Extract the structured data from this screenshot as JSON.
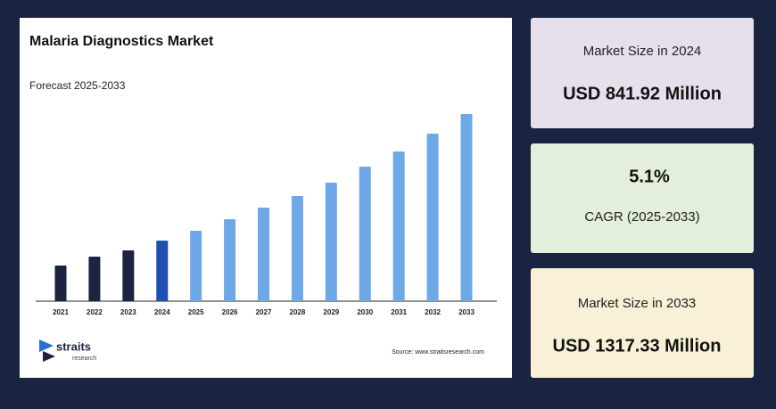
{
  "chart_data": {
    "type": "bar",
    "title": "Malaria Diagnostics Market",
    "subtitle": "Forecast 2025-2033",
    "categories": [
      "2021",
      "2022",
      "2023",
      "2024",
      "2025",
      "2026",
      "2027",
      "2028",
      "2029",
      "2030",
      "2031",
      "2032",
      "2033"
    ],
    "values": [
      40,
      50,
      57,
      68,
      79,
      92,
      105,
      118,
      133,
      151,
      168,
      188,
      210
    ],
    "colors": [
      "#1b2440",
      "#1b2440",
      "#1b2440",
      "#1f4fb0",
      "#6fa8e6",
      "#6fa8e6",
      "#6fa8e6",
      "#6fa8e6",
      "#6fa8e6",
      "#6fa8e6",
      "#6fa8e6",
      "#6fa8e6",
      "#6fa8e6"
    ],
    "source": "Source: www.straitsresearch.com"
  },
  "logo": {
    "name": "straits",
    "tagline": "research"
  },
  "cards": [
    {
      "label": "Market Size in 2024",
      "value": "USD 841.92 Million"
    },
    {
      "value": "5.1%",
      "label": "CAGR (2025-2033)"
    },
    {
      "label": "Market Size in 2033",
      "value": "USD 1317.33 Million"
    }
  ]
}
